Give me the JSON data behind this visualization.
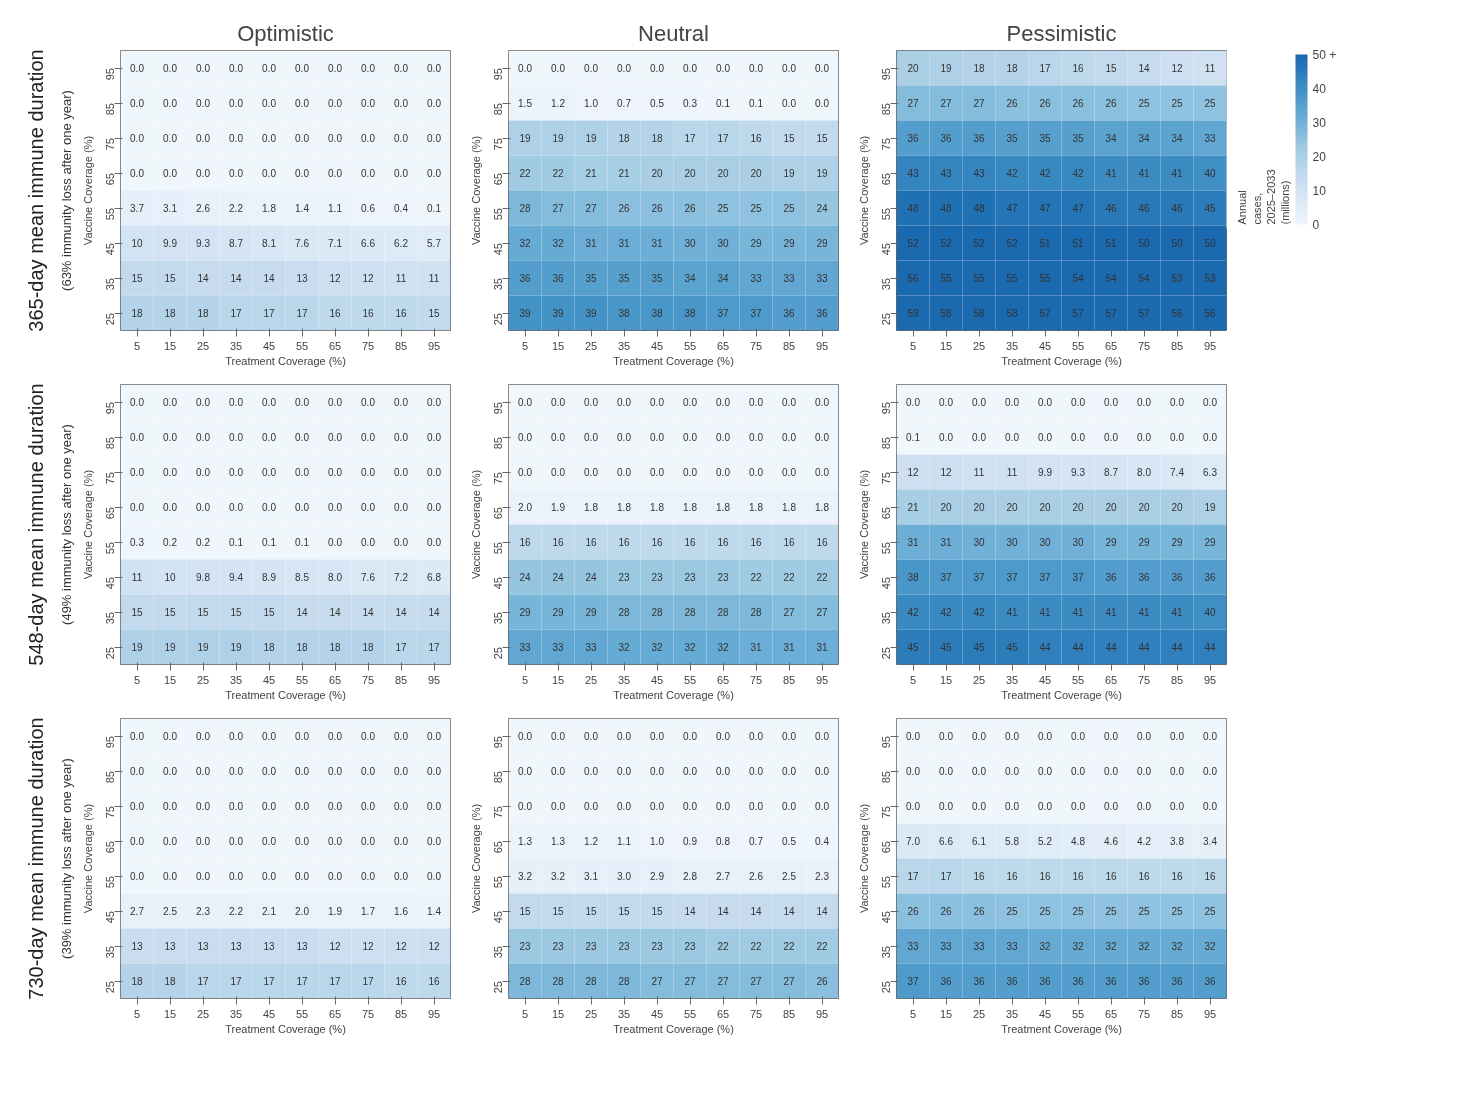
{
  "chart_data": [
    {
      "type": "heatmap",
      "title": "Optimistic",
      "annotations": [
        "365-day mean immune duration",
        "(63% immunity loss after one year)"
      ],
      "xlabel": "Treatment Coverage (%)",
      "ylabel": "Vaccine Coverage (%)",
      "categories": [
        "5",
        "15",
        "25",
        "35",
        "45",
        "55",
        "65",
        "75",
        "85",
        "95"
      ],
      "y_categories": [
        "95",
        "85",
        "75",
        "65",
        "55",
        "45",
        "35",
        "25"
      ],
      "data_labels": true,
      "cells": [
        [
          0.0,
          0.0,
          0.0,
          0.0,
          0.0,
          0.0,
          0.0,
          0.0,
          0.0,
          0.0
        ],
        [
          0.0,
          0.0,
          0.0,
          0.0,
          0.0,
          0.0,
          0.0,
          0.0,
          0.0,
          0.0
        ],
        [
          0.0,
          0.0,
          0.0,
          0.0,
          0.0,
          0.0,
          0.0,
          0.0,
          0.0,
          0.0
        ],
        [
          0.0,
          0.0,
          0.0,
          0.0,
          0.0,
          0.0,
          0.0,
          0.0,
          0.0,
          0.0
        ],
        [
          3.7,
          3.1,
          2.6,
          2.2,
          1.8,
          1.4,
          1.1,
          0.6,
          0.4,
          0.1
        ],
        [
          10,
          9.9,
          9.3,
          8.7,
          8.1,
          7.6,
          7.1,
          6.6,
          6.2,
          5.7
        ],
        [
          15,
          15,
          14,
          14,
          14,
          13,
          12,
          12,
          11,
          11
        ],
        [
          18,
          18,
          18,
          17,
          17,
          17,
          16,
          16,
          16,
          15
        ]
      ],
      "cell_labels": [
        [
          "0.0",
          "0.0",
          "0.0",
          "0.0",
          "0.0",
          "0.0",
          "0.0",
          "0.0",
          "0.0",
          "0.0"
        ],
        [
          "0.0",
          "0.0",
          "0.0",
          "0.0",
          "0.0",
          "0.0",
          "0.0",
          "0.0",
          "0.0",
          "0.0"
        ],
        [
          "0.0",
          "0.0",
          "0.0",
          "0.0",
          "0.0",
          "0.0",
          "0.0",
          "0.0",
          "0.0",
          "0.0"
        ],
        [
          "0.0",
          "0.0",
          "0.0",
          "0.0",
          "0.0",
          "0.0",
          "0.0",
          "0.0",
          "0.0",
          "0.0"
        ],
        [
          "3.7",
          "3.1",
          "2.6",
          "2.2",
          "1.8",
          "1.4",
          "1.1",
          "0.6",
          "0.4",
          "0.1"
        ],
        [
          "10",
          "9.9",
          "9.3",
          "8.7",
          "8.1",
          "7.6",
          "7.1",
          "6.6",
          "6.2",
          "5.7"
        ],
        [
          "15",
          "15",
          "14",
          "14",
          "14",
          "13",
          "12",
          "12",
          "11",
          "11"
        ],
        [
          "18",
          "18",
          "18",
          "17",
          "17",
          "17",
          "16",
          "16",
          "16",
          "15"
        ]
      ]
    },
    {
      "type": "heatmap",
      "title": "Neutral",
      "xlabel": "Treatment Coverage (%)",
      "ylabel": "Vaccine Coverage (%)",
      "categories": [
        "5",
        "15",
        "25",
        "35",
        "45",
        "55",
        "65",
        "75",
        "85",
        "95"
      ],
      "y_categories": [
        "95",
        "85",
        "75",
        "65",
        "55",
        "45",
        "35",
        "25"
      ],
      "data_labels": true,
      "cells": [
        [
          0.0,
          0.0,
          0.0,
          0.0,
          0.0,
          0.0,
          0.0,
          0.0,
          0.0,
          0.0
        ],
        [
          1.5,
          1.2,
          1.0,
          0.7,
          0.5,
          0.3,
          0.1,
          0.1,
          0.0,
          0.0
        ],
        [
          19,
          19,
          19,
          18,
          18,
          17,
          17,
          16,
          15,
          15
        ],
        [
          22,
          22,
          21,
          21,
          20,
          20,
          20,
          20,
          19,
          19
        ],
        [
          28,
          27,
          27,
          26,
          26,
          26,
          25,
          25,
          25,
          24
        ],
        [
          32,
          32,
          31,
          31,
          31,
          30,
          30,
          29,
          29,
          29
        ],
        [
          36,
          36,
          35,
          35,
          35,
          34,
          34,
          33,
          33,
          33
        ],
        [
          39,
          39,
          39,
          38,
          38,
          38,
          37,
          37,
          36,
          36
        ]
      ],
      "cell_labels": [
        [
          "0.0",
          "0.0",
          "0.0",
          "0.0",
          "0.0",
          "0.0",
          "0.0",
          "0.0",
          "0.0",
          "0.0"
        ],
        [
          "1.5",
          "1.2",
          "1.0",
          "0.7",
          "0.5",
          "0.3",
          "0.1",
          "0.1",
          "0.0",
          "0.0"
        ],
        [
          "19",
          "19",
          "19",
          "18",
          "18",
          "17",
          "17",
          "16",
          "15",
          "15"
        ],
        [
          "22",
          "22",
          "21",
          "21",
          "20",
          "20",
          "20",
          "20",
          "19",
          "19"
        ],
        [
          "28",
          "27",
          "27",
          "26",
          "26",
          "26",
          "25",
          "25",
          "25",
          "24"
        ],
        [
          "32",
          "32",
          "31",
          "31",
          "31",
          "30",
          "30",
          "29",
          "29",
          "29"
        ],
        [
          "36",
          "36",
          "35",
          "35",
          "35",
          "34",
          "34",
          "33",
          "33",
          "33"
        ],
        [
          "39",
          "39",
          "39",
          "38",
          "38",
          "38",
          "37",
          "37",
          "36",
          "36"
        ]
      ]
    },
    {
      "type": "heatmap",
      "title": "Pessimistic",
      "xlabel": "Treatment Coverage (%)",
      "ylabel": "Vaccine Coverage (%)",
      "categories": [
        "5",
        "15",
        "25",
        "35",
        "45",
        "55",
        "65",
        "75",
        "85",
        "95"
      ],
      "y_categories": [
        "95",
        "85",
        "75",
        "65",
        "55",
        "45",
        "35",
        "25"
      ],
      "clim": [
        0,
        50
      ],
      "cticks": [
        0,
        10,
        20,
        30,
        40,
        {
          "value": 50,
          "label": "50 +"
        }
      ],
      "clabel": "Annual cases, 2025–2033 (millions)",
      "data_labels": true,
      "cells": [
        [
          20,
          19,
          18,
          18,
          17,
          16,
          15,
          14,
          12,
          11
        ],
        [
          27,
          27,
          27,
          26,
          26,
          26,
          26,
          25,
          25,
          25
        ],
        [
          36,
          36,
          36,
          35,
          35,
          35,
          34,
          34,
          34,
          33
        ],
        [
          43,
          43,
          43,
          42,
          42,
          42,
          41,
          41,
          41,
          40
        ],
        [
          48,
          48,
          48,
          47,
          47,
          47,
          46,
          46,
          46,
          45
        ],
        [
          52,
          52,
          52,
          52,
          51,
          51,
          51,
          50,
          50,
          50
        ],
        [
          56,
          55,
          55,
          55,
          55,
          54,
          54,
          54,
          53,
          53
        ],
        [
          59,
          58,
          58,
          58,
          57,
          57,
          57,
          57,
          56,
          56
        ]
      ]
    },
    {
      "type": "heatmap",
      "annotations": [
        "548-day mean immune duration",
        "(49% immunity loss after one year)"
      ],
      "xlabel": "Treatment Coverage (%)",
      "ylabel": "Vaccine Coverage (%)",
      "categories": [
        "5",
        "15",
        "25",
        "35",
        "45",
        "55",
        "65",
        "75",
        "85",
        "95"
      ],
      "y_categories": [
        "95",
        "85",
        "75",
        "65",
        "55",
        "45",
        "35",
        "25"
      ],
      "data_labels": true,
      "cells": [
        [
          0.0,
          0.0,
          0.0,
          0.0,
          0.0,
          0.0,
          0.0,
          0.0,
          0.0,
          0.0
        ],
        [
          0.0,
          0.0,
          0.0,
          0.0,
          0.0,
          0.0,
          0.0,
          0.0,
          0.0,
          0.0
        ],
        [
          0.0,
          0.0,
          0.0,
          0.0,
          0.0,
          0.0,
          0.0,
          0.0,
          0.0,
          0.0
        ],
        [
          0.0,
          0.0,
          0.0,
          0.0,
          0.0,
          0.0,
          0.0,
          0.0,
          0.0,
          0.0
        ],
        [
          0.3,
          0.2,
          0.2,
          0.1,
          0.1,
          0.1,
          0.0,
          0.0,
          0.0,
          0.0
        ],
        [
          11,
          10,
          9.8,
          9.4,
          8.9,
          8.5,
          8.0,
          7.6,
          7.2,
          6.8
        ],
        [
          15,
          15,
          15,
          15,
          15,
          14,
          14,
          14,
          14,
          14
        ],
        [
          19,
          19,
          19,
          19,
          18,
          18,
          18,
          18,
          17,
          17
        ]
      ],
      "cell_labels": [
        [
          "0.0",
          "0.0",
          "0.0",
          "0.0",
          "0.0",
          "0.0",
          "0.0",
          "0.0",
          "0.0",
          "0.0"
        ],
        [
          "0.0",
          "0.0",
          "0.0",
          "0.0",
          "0.0",
          "0.0",
          "0.0",
          "0.0",
          "0.0",
          "0.0"
        ],
        [
          "0.0",
          "0.0",
          "0.0",
          "0.0",
          "0.0",
          "0.0",
          "0.0",
          "0.0",
          "0.0",
          "0.0"
        ],
        [
          "0.0",
          "0.0",
          "0.0",
          "0.0",
          "0.0",
          "0.0",
          "0.0",
          "0.0",
          "0.0",
          "0.0"
        ],
        [
          "0.3",
          "0.2",
          "0.2",
          "0.1",
          "0.1",
          "0.1",
          "0.0",
          "0.0",
          "0.0",
          "0.0"
        ],
        [
          "11",
          "10",
          "9.8",
          "9.4",
          "8.9",
          "8.5",
          "8.0",
          "7.6",
          "7.2",
          "6.8"
        ],
        [
          "15",
          "15",
          "15",
          "15",
          "15",
          "14",
          "14",
          "14",
          "14",
          "14"
        ],
        [
          "19",
          "19",
          "19",
          "19",
          "18",
          "18",
          "18",
          "18",
          "17",
          "17"
        ]
      ]
    },
    {
      "type": "heatmap",
      "xlabel": "Treatment Coverage (%)",
      "ylabel": "Vaccine Coverage (%)",
      "categories": [
        "5",
        "15",
        "25",
        "35",
        "45",
        "55",
        "65",
        "75",
        "85",
        "95"
      ],
      "y_categories": [
        "95",
        "85",
        "75",
        "65",
        "55",
        "45",
        "35",
        "25"
      ],
      "data_labels": true,
      "cells": [
        [
          0.0,
          0.0,
          0.0,
          0.0,
          0.0,
          0.0,
          0.0,
          0.0,
          0.0,
          0.0
        ],
        [
          0.0,
          0.0,
          0.0,
          0.0,
          0.0,
          0.0,
          0.0,
          0.0,
          0.0,
          0.0
        ],
        [
          0.0,
          0.0,
          0.0,
          0.0,
          0.0,
          0.0,
          0.0,
          0.0,
          0.0,
          0.0
        ],
        [
          2.0,
          1.9,
          1.8,
          1.8,
          1.8,
          1.8,
          1.8,
          1.8,
          1.8,
          1.8
        ],
        [
          16,
          16,
          16,
          16,
          16,
          16,
          16,
          16,
          16,
          16
        ],
        [
          24,
          24,
          24,
          23,
          23,
          23,
          23,
          22,
          22,
          22
        ],
        [
          29,
          29,
          29,
          28,
          28,
          28,
          28,
          28,
          27,
          27
        ],
        [
          33,
          33,
          33,
          32,
          32,
          32,
          32,
          31,
          31,
          31
        ]
      ],
      "cell_labels": [
        [
          "0.0",
          "0.0",
          "0.0",
          "0.0",
          "0.0",
          "0.0",
          "0.0",
          "0.0",
          "0.0",
          "0.0"
        ],
        [
          "0.0",
          "0.0",
          "0.0",
          "0.0",
          "0.0",
          "0.0",
          "0.0",
          "0.0",
          "0.0",
          "0.0"
        ],
        [
          "0.0",
          "0.0",
          "0.0",
          "0.0",
          "0.0",
          "0.0",
          "0.0",
          "0.0",
          "0.0",
          "0.0"
        ],
        [
          "2.0",
          "1.9",
          "1.8",
          "1.8",
          "1.8",
          "1.8",
          "1.8",
          "1.8",
          "1.8",
          "1.8"
        ],
        [
          "16",
          "16",
          "16",
          "16",
          "16",
          "16",
          "16",
          "16",
          "16",
          "16"
        ],
        [
          "24",
          "24",
          "24",
          "23",
          "23",
          "23",
          "23",
          "22",
          "22",
          "22"
        ],
        [
          "29",
          "29",
          "29",
          "28",
          "28",
          "28",
          "28",
          "28",
          "27",
          "27"
        ],
        [
          "33",
          "33",
          "33",
          "32",
          "32",
          "32",
          "32",
          "31",
          "31",
          "31"
        ]
      ]
    },
    {
      "type": "heatmap",
      "xlabel": "Treatment Coverage (%)",
      "ylabel": "Vaccine Coverage (%)",
      "categories": [
        "5",
        "15",
        "25",
        "35",
        "45",
        "55",
        "65",
        "75",
        "85",
        "95"
      ],
      "y_categories": [
        "95",
        "85",
        "75",
        "65",
        "55",
        "45",
        "35",
        "25"
      ],
      "data_labels": true,
      "cells": [
        [
          0.0,
          0.0,
          0.0,
          0.0,
          0.0,
          0.0,
          0.0,
          0.0,
          0.0,
          0.0
        ],
        [
          0.1,
          0.0,
          0.0,
          0.0,
          0.0,
          0.0,
          0.0,
          0.0,
          0.0,
          0.0
        ],
        [
          12,
          12,
          11,
          11,
          9.9,
          9.3,
          8.7,
          8.0,
          7.4,
          6.3
        ],
        [
          21,
          20,
          20,
          20,
          20,
          20,
          20,
          20,
          20,
          19
        ],
        [
          31,
          31,
          30,
          30,
          30,
          30,
          29,
          29,
          29,
          29
        ],
        [
          38,
          37,
          37,
          37,
          37,
          37,
          36,
          36,
          36,
          36
        ],
        [
          42,
          42,
          42,
          41,
          41,
          41,
          41,
          41,
          41,
          40
        ],
        [
          45,
          45,
          45,
          45,
          44,
          44,
          44,
          44,
          44,
          44
        ]
      ],
      "cell_labels": [
        [
          "0.0",
          "0.0",
          "0.0",
          "0.0",
          "0.0",
          "0.0",
          "0.0",
          "0.0",
          "0.0",
          "0.0"
        ],
        [
          "0.1",
          "0.0",
          "0.0",
          "0.0",
          "0.0",
          "0.0",
          "0.0",
          "0.0",
          "0.0",
          "0.0"
        ],
        [
          "12",
          "12",
          "11",
          "11",
          "9.9",
          "9.3",
          "8.7",
          "8.0",
          "7.4",
          "6.3"
        ],
        [
          "21",
          "20",
          "20",
          "20",
          "20",
          "20",
          "20",
          "20",
          "20",
          "19"
        ],
        [
          "31",
          "31",
          "30",
          "30",
          "30",
          "30",
          "29",
          "29",
          "29",
          "29"
        ],
        [
          "38",
          "37",
          "37",
          "37",
          "37",
          "37",
          "36",
          "36",
          "36",
          "36"
        ],
        [
          "42",
          "42",
          "42",
          "41",
          "41",
          "41",
          "41",
          "41",
          "41",
          "40"
        ],
        [
          "45",
          "45",
          "45",
          "45",
          "44",
          "44",
          "44",
          "44",
          "44",
          "44"
        ]
      ]
    },
    {
      "type": "heatmap",
      "annotations": [
        "730-day mean immune duration",
        "(39% immunity loss after one year)"
      ],
      "xlabel": "Treatment Coverage (%)",
      "ylabel": "Vaccine Coverage (%)",
      "categories": [
        "5",
        "15",
        "25",
        "35",
        "45",
        "55",
        "65",
        "75",
        "85",
        "95"
      ],
      "y_categories": [
        "95",
        "85",
        "75",
        "65",
        "55",
        "45",
        "35",
        "25"
      ],
      "data_labels": true,
      "cells": [
        [
          0.0,
          0.0,
          0.0,
          0.0,
          0.0,
          0.0,
          0.0,
          0.0,
          0.0,
          0.0
        ],
        [
          0.0,
          0.0,
          0.0,
          0.0,
          0.0,
          0.0,
          0.0,
          0.0,
          0.0,
          0.0
        ],
        [
          0.0,
          0.0,
          0.0,
          0.0,
          0.0,
          0.0,
          0.0,
          0.0,
          0.0,
          0.0
        ],
        [
          0.0,
          0.0,
          0.0,
          0.0,
          0.0,
          0.0,
          0.0,
          0.0,
          0.0,
          0.0
        ],
        [
          0.0,
          0.0,
          0.0,
          0.0,
          0.0,
          0.0,
          0.0,
          0.0,
          0.0,
          0.0
        ],
        [
          2.7,
          2.5,
          2.3,
          2.2,
          2.1,
          2.0,
          1.9,
          1.7,
          1.6,
          1.4
        ],
        [
          13,
          13,
          13,
          13,
          13,
          13,
          12,
          12,
          12,
          12
        ],
        [
          18,
          18,
          17,
          17,
          17,
          17,
          17,
          17,
          16,
          16
        ]
      ],
      "cell_labels": [
        [
          "0.0",
          "0.0",
          "0.0",
          "0.0",
          "0.0",
          "0.0",
          "0.0",
          "0.0",
          "0.0",
          "0.0"
        ],
        [
          "0.0",
          "0.0",
          "0.0",
          "0.0",
          "0.0",
          "0.0",
          "0.0",
          "0.0",
          "0.0",
          "0.0"
        ],
        [
          "0.0",
          "0.0",
          "0.0",
          "0.0",
          "0.0",
          "0.0",
          "0.0",
          "0.0",
          "0.0",
          "0.0"
        ],
        [
          "0.0",
          "0.0",
          "0.0",
          "0.0",
          "0.0",
          "0.0",
          "0.0",
          "0.0",
          "0.0",
          "0.0"
        ],
        [
          "0.0",
          "0.0",
          "0.0",
          "0.0",
          "0.0",
          "0.0",
          "0.0",
          "0.0",
          "0.0",
          "0.0"
        ],
        [
          "2.7",
          "2.5",
          "2.3",
          "2.2",
          "2.1",
          "2.0",
          "1.9",
          "1.7",
          "1.6",
          "1.4"
        ],
        [
          "13",
          "13",
          "13",
          "13",
          "13",
          "13",
          "12",
          "12",
          "12",
          "12"
        ],
        [
          "18",
          "18",
          "17",
          "17",
          "17",
          "17",
          "17",
          "17",
          "16",
          "16"
        ]
      ]
    },
    {
      "type": "heatmap",
      "xlabel": "Treatment Coverage (%)",
      "ylabel": "Vaccine Coverage (%)",
      "categories": [
        "5",
        "15",
        "25",
        "35",
        "45",
        "55",
        "65",
        "75",
        "85",
        "95"
      ],
      "y_categories": [
        "95",
        "85",
        "75",
        "65",
        "55",
        "45",
        "35",
        "25"
      ],
      "data_labels": true,
      "cells": [
        [
          0.0,
          0.0,
          0.0,
          0.0,
          0.0,
          0.0,
          0.0,
          0.0,
          0.0,
          0.0
        ],
        [
          0.0,
          0.0,
          0.0,
          0.0,
          0.0,
          0.0,
          0.0,
          0.0,
          0.0,
          0.0
        ],
        [
          0.0,
          0.0,
          0.0,
          0.0,
          0.0,
          0.0,
          0.0,
          0.0,
          0.0,
          0.0
        ],
        [
          1.3,
          1.3,
          1.2,
          1.1,
          1.0,
          0.9,
          0.8,
          0.7,
          0.5,
          0.4
        ],
        [
          3.2,
          3.2,
          3.1,
          3.0,
          2.9,
          2.8,
          2.7,
          2.6,
          2.5,
          2.3
        ],
        [
          15,
          15,
          15,
          15,
          15,
          14,
          14,
          14,
          14,
          14
        ],
        [
          23,
          23,
          23,
          23,
          23,
          23,
          22,
          22,
          22,
          22
        ],
        [
          28,
          28,
          28,
          28,
          27,
          27,
          27,
          27,
          27,
          26
        ]
      ],
      "cell_labels": [
        [
          "0.0",
          "0.0",
          "0.0",
          "0.0",
          "0.0",
          "0.0",
          "0.0",
          "0.0",
          "0.0",
          "0.0"
        ],
        [
          "0.0",
          "0.0",
          "0.0",
          "0.0",
          "0.0",
          "0.0",
          "0.0",
          "0.0",
          "0.0",
          "0.0"
        ],
        [
          "0.0",
          "0.0",
          "0.0",
          "0.0",
          "0.0",
          "0.0",
          "0.0",
          "0.0",
          "0.0",
          "0.0"
        ],
        [
          "1.3",
          "1.3",
          "1.2",
          "1.1",
          "1.0",
          "0.9",
          "0.8",
          "0.7",
          "0.5",
          "0.4"
        ],
        [
          "3.2",
          "3.2",
          "3.1",
          "3.0",
          "2.9",
          "2.8",
          "2.7",
          "2.6",
          "2.5",
          "2.3"
        ],
        [
          "15",
          "15",
          "15",
          "15",
          "15",
          "14",
          "14",
          "14",
          "14",
          "14"
        ],
        [
          "23",
          "23",
          "23",
          "23",
          "23",
          "23",
          "22",
          "22",
          "22",
          "22"
        ],
        [
          "28",
          "28",
          "28",
          "28",
          "27",
          "27",
          "27",
          "27",
          "27",
          "26"
        ]
      ]
    },
    {
      "type": "heatmap",
      "xlabel": "Treatment Coverage (%)",
      "ylabel": "Vaccine Coverage (%)",
      "categories": [
        "5",
        "15",
        "25",
        "35",
        "45",
        "55",
        "65",
        "75",
        "85",
        "95"
      ],
      "y_categories": [
        "95",
        "85",
        "75",
        "65",
        "55",
        "45",
        "35",
        "25"
      ],
      "data_labels": true,
      "cells": [
        [
          0.0,
          0.0,
          0.0,
          0.0,
          0.0,
          0.0,
          0.0,
          0.0,
          0.0,
          0.0
        ],
        [
          0.0,
          0.0,
          0.0,
          0.0,
          0.0,
          0.0,
          0.0,
          0.0,
          0.0,
          0.0
        ],
        [
          0.0,
          0.0,
          0.0,
          0.0,
          0.0,
          0.0,
          0.0,
          0.0,
          0.0,
          0.0
        ],
        [
          7.0,
          6.6,
          6.1,
          5.8,
          5.2,
          4.8,
          4.6,
          4.2,
          3.8,
          3.4
        ],
        [
          17,
          17,
          16,
          16,
          16,
          16,
          16,
          16,
          16,
          16
        ],
        [
          26,
          26,
          26,
          25,
          25,
          25,
          25,
          25,
          25,
          25
        ],
        [
          33,
          33,
          33,
          33,
          32,
          32,
          32,
          32,
          32,
          32
        ],
        [
          37,
          36,
          36,
          36,
          36,
          36,
          36,
          36,
          36,
          36
        ]
      ],
      "cell_labels": [
        [
          "0.0",
          "0.0",
          "0.0",
          "0.0",
          "0.0",
          "0.0",
          "0.0",
          "0.0",
          "0.0",
          "0.0"
        ],
        [
          "0.0",
          "0.0",
          "0.0",
          "0.0",
          "0.0",
          "0.0",
          "0.0",
          "0.0",
          "0.0",
          "0.0"
        ],
        [
          "0.0",
          "0.0",
          "0.0",
          "0.0",
          "0.0",
          "0.0",
          "0.0",
          "0.0",
          "0.0",
          "0.0"
        ],
        [
          "7.0",
          "6.6",
          "6.1",
          "5.8",
          "5.2",
          "4.8",
          "4.6",
          "4.2",
          "3.8",
          "3.4"
        ],
        [
          "17",
          "17",
          "16",
          "16",
          "16",
          "16",
          "16",
          "16",
          "16",
          "16"
        ],
        [
          "26",
          "26",
          "26",
          "25",
          "25",
          "25",
          "25",
          "25",
          "25",
          "25"
        ],
        [
          "33",
          "33",
          "33",
          "33",
          "32",
          "32",
          "32",
          "32",
          "32",
          "32"
        ],
        [
          "37",
          "36",
          "36",
          "36",
          "36",
          "36",
          "36",
          "36",
          "36",
          "36"
        ]
      ]
    }
  ]
}
